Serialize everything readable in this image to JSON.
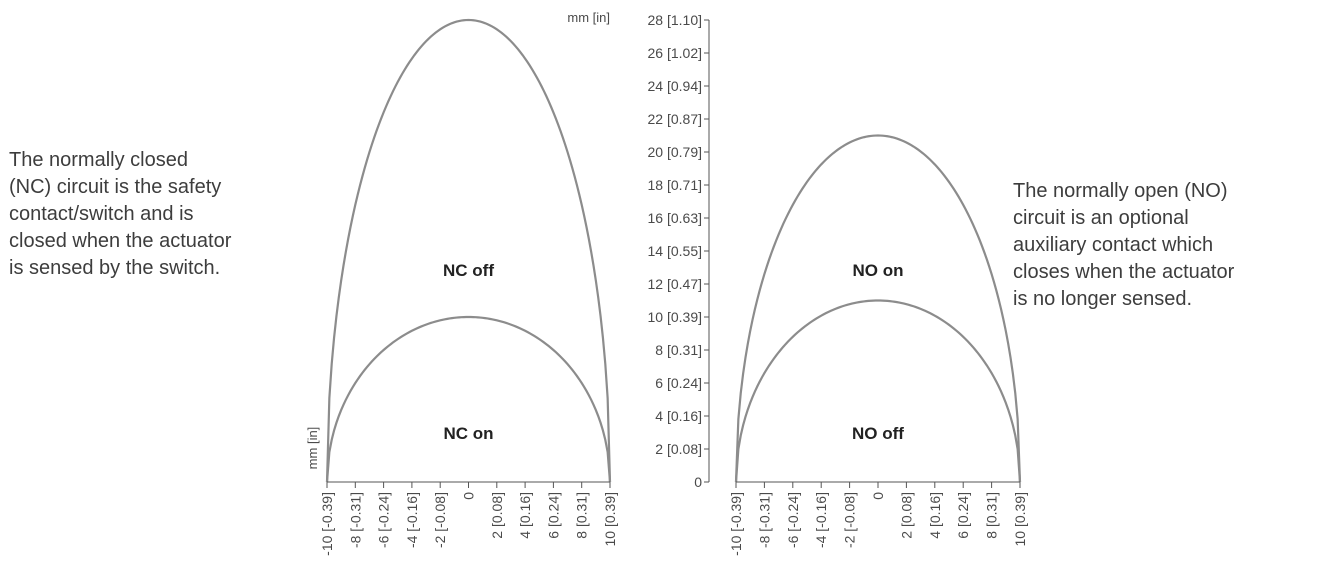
{
  "descriptions": {
    "left": [
      "The normally closed",
      "(NC) circuit is the safety",
      "contact/switch and is",
      "closed when the actuator",
      "is sensed by the switch."
    ],
    "right": [
      "The normally open (NO)",
      "circuit is an optional",
      "auxiliary contact which",
      "closes when the actuator",
      "is no longer sensed."
    ]
  },
  "chart_data": [
    {
      "type": "area",
      "xlabel": "",
      "ylabel": "mm [in]",
      "y_unit_label_top": "mm [in]",
      "xlim": [
        -10,
        10
      ],
      "ylim": [
        0,
        28
      ],
      "x_ticks": [
        -10,
        -8,
        -6,
        -4,
        -2,
        0,
        2,
        4,
        6,
        8,
        10
      ],
      "x_tick_labels": [
        "-10 [-0.39]",
        "-8 [-0.31]",
        "-6 [-0.24]",
        "-4 [-0.16]",
        "-2 [-0.08]",
        "0",
        "2 [0.08]",
        "4 [0.16]",
        "6 [0.24]",
        "8 [0.31]",
        "10 [0.39]"
      ],
      "series": [
        {
          "name": "",
          "x": [
            -10,
            -8,
            -6,
            -4,
            -2,
            0,
            2,
            4,
            6,
            8,
            10
          ],
          "values": [
            0,
            16.8,
            22.4,
            25.7,
            27.4,
            28,
            27.4,
            25.7,
            22.4,
            16.8,
            0
          ]
        },
        {
          "name": "",
          "x": [
            -10,
            -8,
            -6,
            -4,
            -2,
            0,
            2,
            4,
            6,
            8,
            10
          ],
          "values": [
            0,
            6.0,
            8.0,
            9.2,
            9.8,
            10,
            9.8,
            9.2,
            8.0,
            6.0,
            0
          ]
        }
      ],
      "region_labels": [
        {
          "text": "NC off",
          "x": 0,
          "y": 12.5
        },
        {
          "text": "NC on",
          "x": 0,
          "y": 2.6
        }
      ]
    },
    {
      "type": "area",
      "xlabel": "",
      "ylabel": "",
      "xlim": [
        -10,
        10
      ],
      "ylim": [
        0,
        28
      ],
      "y_ticks": [
        0,
        2,
        4,
        6,
        8,
        10,
        12,
        14,
        16,
        18,
        20,
        22,
        24,
        26,
        28
      ],
      "y_tick_labels": [
        "0",
        "2 [0.08]",
        "4 [0.16]",
        "6 [0.24]",
        "8 [0.31]",
        "10 [0.39]",
        "12 [0.47]",
        "14 [0.55]",
        "16 [0.63]",
        "18 [0.71]",
        "20 [0.79]",
        "22 [0.87]",
        "24 [0.94]",
        "26 [1.02]",
        "28 [1.10]"
      ],
      "x_ticks": [
        -10,
        -8,
        -6,
        -4,
        -2,
        0,
        2,
        4,
        6,
        8,
        10
      ],
      "x_tick_labels": [
        "-10 [-0.39]",
        "-8 [-0.31]",
        "-6 [-0.24]",
        "-4 [-0.16]",
        "-2 [-0.08]",
        "0",
        "2 [0.08]",
        "4 [0.16]",
        "6 [0.24]",
        "8 [0.31]",
        "10 [0.39]"
      ],
      "series": [
        {
          "name": "",
          "x": [
            -10,
            -8,
            -6,
            -4,
            -2,
            0,
            2,
            4,
            6,
            8,
            10
          ],
          "values": [
            0,
            12.6,
            16.8,
            19.2,
            20.6,
            21,
            20.6,
            19.2,
            16.8,
            12.6,
            0
          ]
        },
        {
          "name": "",
          "x": [
            -10,
            -8,
            -6,
            -4,
            -2,
            0,
            2,
            4,
            6,
            8,
            10
          ],
          "values": [
            0,
            6.6,
            8.8,
            10.1,
            10.8,
            11,
            10.8,
            10.1,
            8.8,
            6.6,
            0
          ]
        }
      ],
      "region_labels": [
        {
          "text": "NO on",
          "x": 0,
          "y": 12.5
        },
        {
          "text": "NO off",
          "x": 0,
          "y": 2.6
        }
      ]
    }
  ]
}
